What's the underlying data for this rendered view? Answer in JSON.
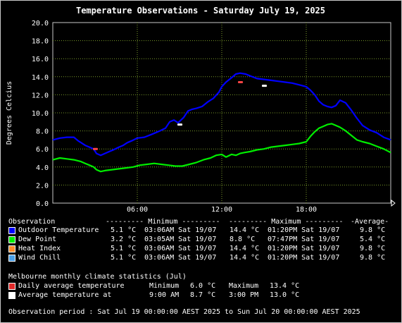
{
  "chart_data": {
    "type": "line",
    "title": "Temperature Observations - Saturday July 19, 2025",
    "ylabel": "Degrees Celcius",
    "xlabel": "",
    "ylim": [
      0,
      20
    ],
    "yticks": [
      "0.0",
      "2.0",
      "4.0",
      "6.0",
      "8.0",
      "10.0",
      "12.0",
      "14.0",
      "16.0",
      "18.0",
      "20.0"
    ],
    "xlim": [
      0,
      24
    ],
    "xticks": [
      {
        "h": 6,
        "label": "06:00"
      },
      {
        "h": 12,
        "label": "12:00"
      },
      {
        "h": 18,
        "label": "18:00"
      }
    ],
    "grid": true,
    "series": [
      {
        "name": "Outdoor Temperature",
        "color": "#0000ff",
        "x": [
          0,
          0.5,
          1,
          1.5,
          1.8,
          2,
          2.3,
          2.6,
          2.9,
          3.1,
          3.4,
          3.7,
          4.0,
          4.3,
          4.7,
          5.0,
          5.3,
          5.6,
          6.0,
          6.5,
          7.0,
          7.3,
          7.6,
          8.0,
          8.3,
          8.6,
          8.9,
          9.3,
          9.6,
          9.9,
          10.2,
          10.6,
          11.0,
          11.4,
          11.8,
          12.0,
          12.3,
          12.7,
          13.0,
          13.3,
          13.7,
          14.0,
          14.5,
          15.0,
          15.5,
          16.0,
          16.5,
          17.0,
          17.5,
          18.0,
          18.3,
          18.6,
          18.9,
          19.2,
          19.5,
          19.8,
          20.1,
          20.4,
          20.8,
          21.2,
          21.6,
          22.0,
          22.5,
          23.0,
          23.5,
          24.0
        ],
        "y": [
          7.0,
          7.2,
          7.3,
          7.3,
          6.9,
          6.7,
          6.4,
          6.2,
          6.0,
          5.5,
          5.3,
          5.5,
          5.7,
          5.9,
          6.2,
          6.4,
          6.7,
          6.9,
          7.2,
          7.3,
          7.6,
          7.8,
          8.0,
          8.3,
          9.0,
          9.2,
          8.9,
          9.5,
          10.2,
          10.4,
          10.5,
          10.7,
          11.2,
          11.6,
          12.3,
          12.9,
          13.4,
          13.9,
          14.3,
          14.4,
          14.3,
          14.1,
          13.8,
          13.7,
          13.6,
          13.5,
          13.4,
          13.3,
          13.1,
          12.9,
          12.5,
          12.0,
          11.3,
          10.9,
          10.7,
          10.6,
          10.8,
          11.4,
          11.1,
          10.3,
          9.4,
          8.6,
          8.1,
          7.8,
          7.3,
          7.0
        ]
      },
      {
        "name": "Dew Point",
        "color": "#00ee00",
        "x": [
          0,
          0.5,
          1,
          1.5,
          2,
          2.3,
          2.6,
          2.9,
          3.1,
          3.4,
          3.7,
          4.2,
          4.7,
          5.2,
          5.7,
          6.2,
          6.7,
          7.2,
          7.7,
          8.2,
          8.7,
          9.2,
          9.7,
          10.2,
          10.7,
          11.2,
          11.6,
          12.0,
          12.3,
          12.7,
          13.0,
          13.3,
          13.6,
          14.0,
          14.5,
          15.0,
          15.5,
          16.0,
          16.5,
          17.0,
          17.5,
          18.0,
          18.3,
          18.6,
          18.9,
          19.2,
          19.5,
          19.8,
          20.1,
          20.4,
          20.8,
          21.2,
          21.6,
          22.0,
          22.5,
          23.0,
          23.5,
          24.0
        ],
        "y": [
          4.8,
          5.0,
          4.9,
          4.8,
          4.6,
          4.4,
          4.2,
          4.0,
          3.7,
          3.5,
          3.6,
          3.7,
          3.8,
          3.9,
          4.0,
          4.2,
          4.3,
          4.4,
          4.3,
          4.2,
          4.1,
          4.1,
          4.3,
          4.5,
          4.8,
          5.0,
          5.3,
          5.4,
          5.1,
          5.4,
          5.3,
          5.5,
          5.6,
          5.7,
          5.9,
          6.0,
          6.2,
          6.3,
          6.4,
          6.5,
          6.6,
          6.8,
          7.4,
          7.9,
          8.3,
          8.5,
          8.7,
          8.8,
          8.6,
          8.4,
          8.0,
          7.5,
          7.0,
          6.8,
          6.6,
          6.3,
          6.0,
          5.6
        ]
      }
    ],
    "markers": [
      {
        "label": "Daily average temperature minimum",
        "x": 3.0,
        "y": 6.0,
        "color": "#ff4444"
      },
      {
        "label": "Daily average temperature maximum",
        "x": 13.3,
        "y": 13.4,
        "color": "#ff4444"
      },
      {
        "label": "Average temperature at 9:00 AM",
        "x": 9.0,
        "y": 8.7,
        "color": "#ffffff"
      },
      {
        "label": "Average temperature at 3:00 PM",
        "x": 15.0,
        "y": 13.0,
        "color": "#ffffff"
      }
    ]
  },
  "legend": {
    "header": {
      "observation": "Observation",
      "minimum": "--------- Minimum ---------",
      "maximum": "--------- Maximum ---------",
      "average": "-Average-"
    },
    "rows": [
      {
        "color": "#0000ff",
        "name": "Outdoor Temperature",
        "min": "5.1 °C",
        "min_time": "03:06AM Sat 19/07",
        "max": "14.4 °C",
        "max_time": "01:20PM Sat 19/07",
        "avg": "9.8 °C"
      },
      {
        "color": "#00ee00",
        "name": "Dew Point",
        "min": "3.2 °C",
        "min_time": "03:05AM Sat 19/07",
        "max": "8.8 °C",
        "max_time": "07:47PM Sat 19/07",
        "avg": "5.4 °C"
      },
      {
        "color": "#ff8c2a",
        "name": "Heat Index",
        "min": "5.1 °C",
        "min_time": "03:06AM Sat 19/07",
        "max": "14.4 °C",
        "max_time": "01:20PM Sat 19/07",
        "avg": "9.8 °C"
      },
      {
        "color": "#4aa0e8",
        "name": "Wind Chill",
        "min": "5.1 °C",
        "min_time": "03:06AM Sat 19/07",
        "max": "14.4 °C",
        "max_time": "01:20PM Sat 19/07",
        "avg": "9.8 °C"
      }
    ]
  },
  "climate": {
    "title": "Melbourne monthly climate statistics (Jul)",
    "rows": [
      {
        "color": "#e02828",
        "label": "Daily average temperature",
        "c1": "Minimum",
        "v1": "6.0 °C",
        "c2": "Maximum",
        "v2": "13.4 °C"
      },
      {
        "color": "#ffffff",
        "label": "Average temperature at",
        "c1": "9:00 AM",
        "v1": "8.7 °C",
        "c2": "3:00 PM",
        "v2": "13.0 °C"
      }
    ]
  },
  "footer": "Observation period : Sat Jul 19 00:00:00 AEST 2025 to Sun Jul 20 00:00:00 AEST 2025"
}
